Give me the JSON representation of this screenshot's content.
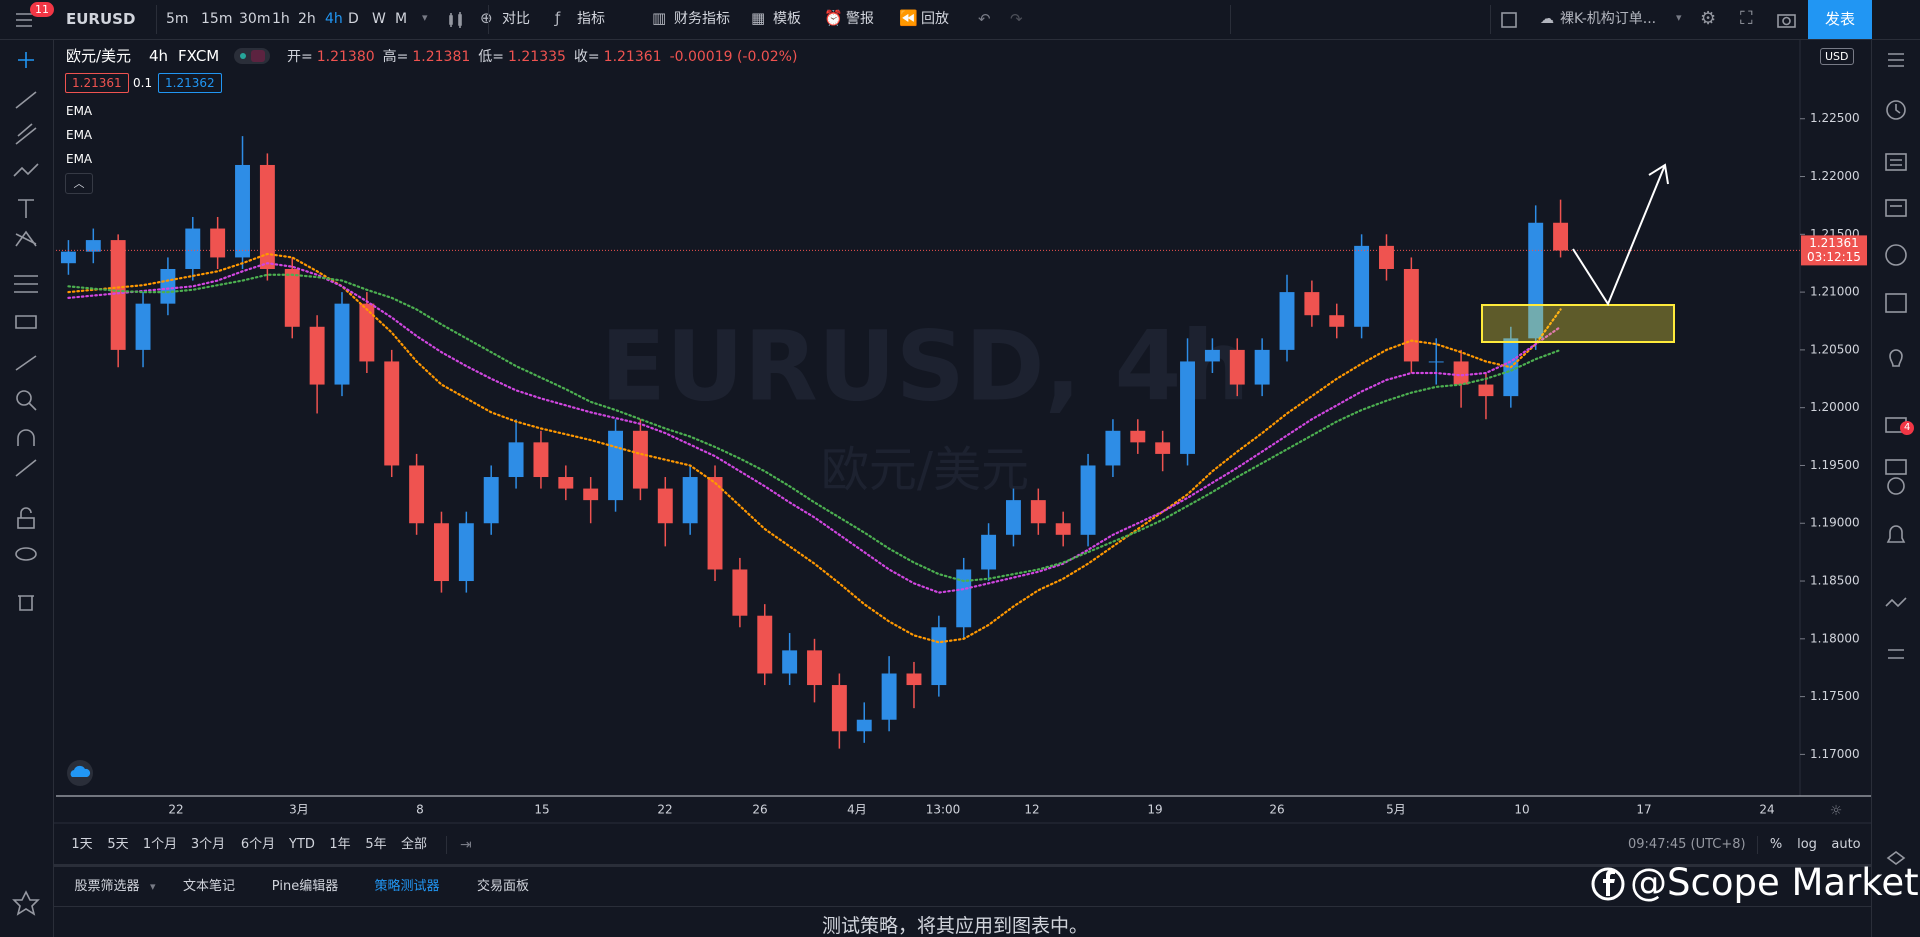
{
  "toolbar": {
    "badge": "11",
    "symbol": "EURUSD",
    "intervals": [
      "5m",
      "15m",
      "30m",
      "1h",
      "2h",
      "4h",
      "D",
      "W",
      "M"
    ],
    "buttons": [
      "对比",
      "指标",
      "财务指标",
      "模板",
      "警报",
      "回放"
    ],
    "layout_name": "裸K-机构订单...",
    "publish": "发表"
  },
  "legend": {
    "symbol": "欧元/美元",
    "interval": "4h",
    "exchange": "FXCM",
    "ohlc": [
      {
        "label": "开=",
        "value": "1.21380"
      },
      {
        "label": "高=",
        "value": "1.21381"
      },
      {
        "label": "低=",
        "value": "1.21335"
      },
      {
        "label": "收=",
        "value": "1.21361"
      }
    ],
    "change": "-0.00019 (-0.02%)",
    "bid": "1.21361",
    "spread": "0.1",
    "ask": "1.21362"
  },
  "currency": "USD",
  "chart_data": {
    "type": "candlestick",
    "title": "EURUSD, 4h",
    "subtitle": "欧元/美元",
    "up_color": "#2e8de6",
    "down_color": "#ef5350",
    "open": [
      1.2125,
      1.2135,
      1.2145,
      1.205,
      1.209,
      1.212,
      1.2155,
      1.213,
      1.221,
      1.212,
      1.207,
      1.202,
      1.209,
      1.204,
      1.195,
      1.19,
      1.185,
      1.19,
      1.194,
      1.197,
      1.194,
      1.193,
      1.192,
      1.198,
      1.193,
      1.19,
      1.194,
      1.186,
      1.182,
      1.177,
      1.179,
      1.176,
      1.172,
      1.173,
      1.177,
      1.176,
      1.181,
      1.186,
      1.189,
      1.192,
      1.19,
      1.189,
      1.195,
      1.198,
      1.197,
      1.196,
      1.204,
      1.205,
      1.202,
      1.205,
      1.21,
      1.208,
      1.207,
      1.214,
      1.212,
      1.204,
      1.204,
      1.202,
      1.201,
      1.206,
      1.216
    ],
    "high": [
      1.2145,
      1.2155,
      1.215,
      1.21,
      1.213,
      1.2165,
      1.2165,
      1.2235,
      1.222,
      1.213,
      1.208,
      1.21,
      1.21,
      1.205,
      1.196,
      1.191,
      1.191,
      1.195,
      1.199,
      1.198,
      1.195,
      1.194,
      1.199,
      1.199,
      1.194,
      1.195,
      1.195,
      1.187,
      1.183,
      1.1805,
      1.18,
      1.177,
      1.1745,
      1.1785,
      1.178,
      1.182,
      1.187,
      1.19,
      1.193,
      1.193,
      1.191,
      1.196,
      1.199,
      1.199,
      1.198,
      1.206,
      1.206,
      1.206,
      1.206,
      1.2115,
      1.211,
      1.209,
      1.215,
      1.215,
      1.213,
      1.206,
      1.205,
      1.203,
      1.207,
      1.2175,
      1.218
    ],
    "low": [
      1.2115,
      1.2125,
      1.2035,
      1.2035,
      1.208,
      1.211,
      1.212,
      1.212,
      1.211,
      1.206,
      1.1995,
      1.201,
      1.203,
      1.194,
      1.189,
      1.184,
      1.184,
      1.189,
      1.193,
      1.193,
      1.192,
      1.19,
      1.191,
      1.192,
      1.188,
      1.189,
      1.185,
      1.181,
      1.176,
      1.176,
      1.1745,
      1.1705,
      1.171,
      1.172,
      1.174,
      1.175,
      1.18,
      1.185,
      1.188,
      1.189,
      1.188,
      1.188,
      1.194,
      1.196,
      1.1945,
      1.195,
      1.203,
      1.201,
      1.201,
      1.204,
      1.207,
      1.206,
      1.206,
      1.211,
      1.203,
      1.202,
      1.2,
      1.199,
      1.2,
      1.205,
      1.213
    ],
    "close": [
      1.2135,
      1.2145,
      1.205,
      1.209,
      1.212,
      1.2155,
      1.213,
      1.221,
      1.212,
      1.207,
      1.202,
      1.209,
      1.204,
      1.195,
      1.19,
      1.185,
      1.19,
      1.194,
      1.197,
      1.194,
      1.193,
      1.192,
      1.198,
      1.193,
      1.19,
      1.194,
      1.186,
      1.182,
      1.177,
      1.179,
      1.176,
      1.172,
      1.173,
      1.177,
      1.176,
      1.181,
      1.186,
      1.189,
      1.192,
      1.19,
      1.189,
      1.195,
      1.198,
      1.197,
      1.196,
      1.204,
      1.205,
      1.202,
      1.205,
      1.21,
      1.208,
      1.207,
      1.214,
      1.212,
      1.204,
      1.204,
      1.202,
      1.201,
      1.206,
      1.216,
      1.2136
    ],
    "series": [
      {
        "name": "EMA",
        "color": "#ff9800",
        "values": [
          1.21,
          1.2102,
          1.2104,
          1.2106,
          1.211,
          1.2114,
          1.2118,
          1.2125,
          1.2133,
          1.213,
          1.2118,
          1.2105,
          1.2085,
          1.2065,
          1.204,
          1.202,
          1.2008,
          1.1996,
          1.1988,
          1.1982,
          1.1977,
          1.1972,
          1.1966,
          1.196,
          1.1955,
          1.195,
          1.1935,
          1.1915,
          1.1895,
          1.188,
          1.1865,
          1.1848,
          1.183,
          1.1815,
          1.1803,
          1.1797,
          1.18,
          1.1812,
          1.1828,
          1.1842,
          1.1852,
          1.1865,
          1.188,
          1.1895,
          1.191,
          1.1925,
          1.1945,
          1.1962,
          1.1978,
          1.1995,
          1.201,
          1.2025,
          1.2038,
          1.205,
          1.2058,
          1.2055,
          1.2048,
          1.204,
          1.2035,
          1.2055,
          1.2085
        ]
      },
      {
        "name": "EMA",
        "color": "#d046e0",
        "values": [
          1.2095,
          1.2097,
          1.2099,
          1.2101,
          1.2103,
          1.2105,
          1.211,
          1.2118,
          1.2125,
          1.2122,
          1.2115,
          1.2105,
          1.2092,
          1.2078,
          1.2062,
          1.2048,
          1.2036,
          1.2025,
          1.2015,
          1.2008,
          1.2002,
          1.1996,
          1.1991,
          1.1986,
          1.1978,
          1.1968,
          1.1958,
          1.1945,
          1.1932,
          1.1918,
          1.1905,
          1.189,
          1.1875,
          1.186,
          1.1848,
          1.184,
          1.1843,
          1.1848,
          1.1853,
          1.1858,
          1.1865,
          1.1877,
          1.189,
          1.19,
          1.191,
          1.1922,
          1.1935,
          1.1948,
          1.1962,
          1.1976,
          1.199,
          1.2002,
          1.2014,
          1.2024,
          1.203,
          1.203,
          1.2028,
          1.203,
          1.204,
          1.2055,
          1.207
        ]
      },
      {
        "name": "EMA",
        "color": "#4caf50",
        "values": [
          1.2105,
          1.2103,
          1.2101,
          1.21,
          1.21,
          1.2102,
          1.2106,
          1.211,
          1.2115,
          1.2115,
          1.2113,
          1.211,
          1.2102,
          1.2095,
          1.2085,
          1.2072,
          1.206,
          1.2048,
          1.2036,
          1.2026,
          1.2016,
          1.2005,
          1.1998,
          1.199,
          1.1982,
          1.1975,
          1.1966,
          1.1956,
          1.1945,
          1.1932,
          1.1918,
          1.1905,
          1.1892,
          1.1878,
          1.1866,
          1.1856,
          1.185,
          1.1852,
          1.1856,
          1.186,
          1.1866,
          1.1875,
          1.1884,
          1.1893,
          1.1903,
          1.1915,
          1.1927,
          1.194,
          1.1952,
          1.1964,
          1.1976,
          1.1988,
          1.1998,
          1.2006,
          1.2013,
          1.2018,
          1.202,
          1.2025,
          1.2032,
          1.2042,
          1.205
        ]
      }
    ],
    "ylim": [
      1.1664,
      1.2319
    ],
    "yticks": [
      {
        "value": 1.17,
        "label": "1.17000"
      },
      {
        "value": 1.175,
        "label": "1.17500"
      },
      {
        "value": 1.18,
        "label": "1.18000"
      },
      {
        "value": 1.185,
        "label": "1.18500"
      },
      {
        "value": 1.19,
        "label": "1.19000"
      },
      {
        "value": 1.195,
        "label": "1.19500"
      },
      {
        "value": 1.2,
        "label": "1.20000"
      },
      {
        "value": 1.205,
        "label": "1.20500"
      },
      {
        "value": 1.21,
        "label": "1.21000"
      },
      {
        "value": 1.215,
        "label": "1.21500"
      },
      {
        "value": 1.22,
        "label": "1.22000"
      },
      {
        "value": 1.225,
        "label": "1.22500"
      }
    ],
    "xtick_labels": [
      "22",
      "3月",
      "8",
      "15",
      "22",
      "26",
      "4月",
      "13:00",
      "12",
      "19",
      "26",
      "5月",
      "10",
      "17",
      "24"
    ],
    "last_price": 1.21361,
    "countdown": "03:12:15",
    "price_line_color": "#ef5350"
  },
  "bottom_bar": {
    "ranges": [
      "1天",
      "5天",
      "1个月",
      "3个月",
      "6个月",
      "YTD",
      "1年",
      "5年",
      "全部"
    ],
    "clock": "09:47:45 (UTC+8)",
    "scale_options": [
      "%",
      "log",
      "auto"
    ]
  },
  "tabs": [
    "股票筛选器",
    "文本笔记",
    "Pine编辑器",
    "策略测试器",
    "交易面板"
  ],
  "panel_message": "测试策略，将其应用到图表中。",
  "brand": "@Scope Markets",
  "alerts_badge": "4"
}
